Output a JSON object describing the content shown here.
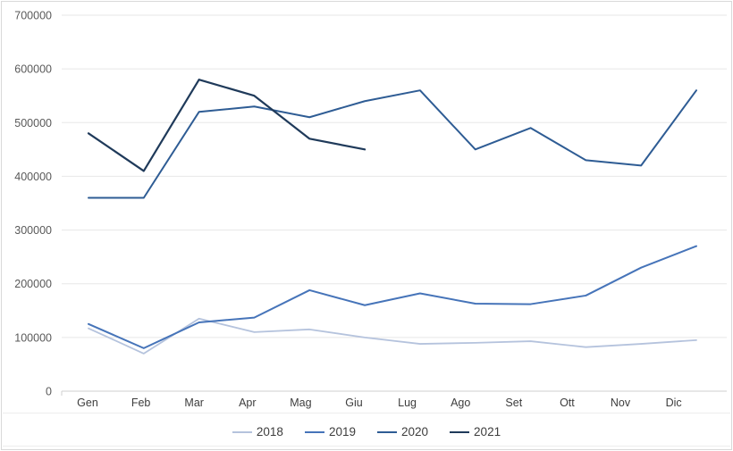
{
  "chart_data": {
    "type": "line",
    "categories": [
      "Gen",
      "Feb",
      "Mar",
      "Apr",
      "Mag",
      "Giu",
      "Lug",
      "Ago",
      "Set",
      "Ott",
      "Nov",
      "Dic"
    ],
    "series": [
      {
        "name": "2018",
        "color": "#b5c3dd",
        "values": [
          117000,
          70000,
          135000,
          110000,
          115000,
          100000,
          88000,
          90000,
          93000,
          82000,
          88000,
          95000
        ]
      },
      {
        "name": "2019",
        "color": "#4674b9",
        "values": [
          125000,
          80000,
          128000,
          137000,
          188000,
          160000,
          182000,
          163000,
          162000,
          178000,
          230000,
          270000
        ]
      },
      {
        "name": "2020",
        "color": "#2e5c94",
        "values": [
          360000,
          360000,
          520000,
          530000,
          510000,
          540000,
          560000,
          450000,
          490000,
          430000,
          420000,
          560000
        ]
      },
      {
        "name": "2021",
        "color": "#1f3a5a",
        "values": [
          480000,
          410000,
          580000,
          550000,
          470000,
          450000,
          null,
          null,
          null,
          null,
          null,
          null
        ]
      }
    ],
    "title": "",
    "xlabel": "",
    "ylabel": "",
    "ylim": [
      0,
      700000
    ],
    "y_ticks": [
      0,
      100000,
      200000,
      300000,
      400000,
      500000,
      600000,
      700000
    ],
    "y_tick_labels": [
      "0",
      "100000",
      "200000",
      "300000",
      "400000",
      "500000",
      "600000",
      "700000"
    ],
    "grid": true,
    "legend_position": "bottom",
    "legend": [
      "2018",
      "2019",
      "2020",
      "2021"
    ]
  },
  "colors": {
    "background": "#ffffff",
    "border": "#d9d9d9",
    "grid": "#e7e7e7",
    "axis_line": "#cfcfcf",
    "separator": "#ededed",
    "y_label": "#595959",
    "x_label": "#3d3d3d",
    "legend_label": "#3d3d3d"
  }
}
